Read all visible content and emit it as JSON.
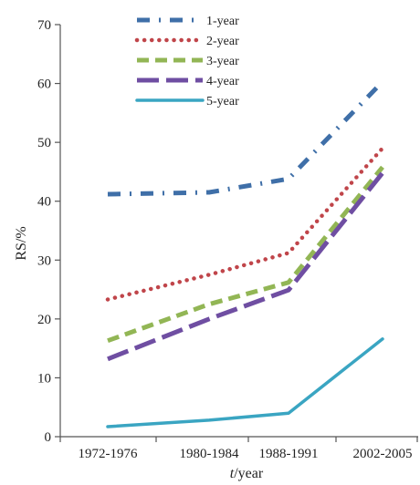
{
  "chart_data": {
    "type": "line",
    "categories": [
      "1972-1976",
      "1980-1984",
      "1988-1991",
      "2002-2005"
    ],
    "ylabel": "RS/%",
    "xlabel": {
      "italic_part": "t",
      "rest": "/year"
    },
    "ylim": [
      0,
      70
    ],
    "yticks": [
      0,
      10,
      20,
      30,
      40,
      50,
      60,
      70
    ],
    "grid": false,
    "legend_position": "top-left",
    "series": [
      {
        "name": "1-year",
        "values": [
          41.2,
          41.5,
          43.8,
          60.3
        ],
        "color": "#3f6fa8",
        "dash": "dash-dot"
      },
      {
        "name": "2-year",
        "values": [
          23.3,
          27.5,
          31.2,
          49.0
        ],
        "color": "#c0454a",
        "dash": "dotted"
      },
      {
        "name": "3-year",
        "values": [
          16.3,
          22.5,
          26.2,
          45.8
        ],
        "color": "#92b655",
        "dash": "dashed"
      },
      {
        "name": "4-year",
        "values": [
          13.2,
          20.0,
          24.9,
          44.8
        ],
        "color": "#6f4ea2",
        "dash": "long-dash"
      },
      {
        "name": "5-year",
        "values": [
          1.7,
          2.8,
          4.0,
          16.6
        ],
        "color": "#3aa5c2",
        "dash": "solid"
      }
    ]
  }
}
